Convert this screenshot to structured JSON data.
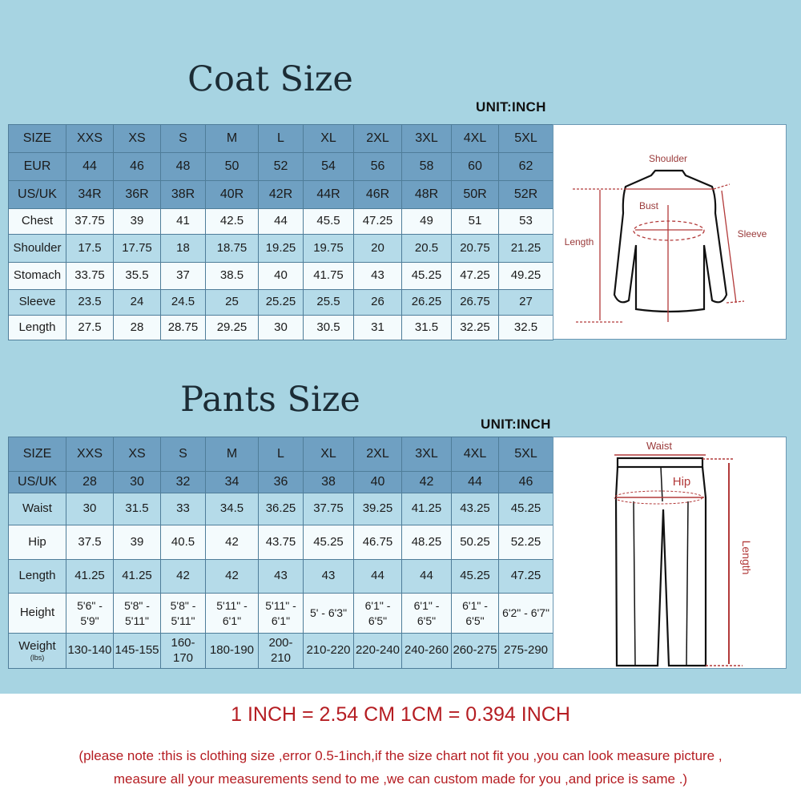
{
  "coat": {
    "title": "Coat Size",
    "unit": "UNIT:INCH",
    "header_rows": [
      [
        "SIZE",
        "XXS",
        "XS",
        "S",
        "M",
        "L",
        "XL",
        "2XL",
        "3XL",
        "4XL",
        "5XL"
      ],
      [
        "EUR",
        "44",
        "46",
        "48",
        "50",
        "52",
        "54",
        "56",
        "58",
        "60",
        "62"
      ],
      [
        "US/UK",
        "34R",
        "36R",
        "38R",
        "40R",
        "42R",
        "44R",
        "46R",
        "48R",
        "50R",
        "52R"
      ]
    ],
    "rows": [
      [
        "Chest",
        "37.75",
        "39",
        "41",
        "42.5",
        "44",
        "45.5",
        "47.25",
        "49",
        "51",
        "53"
      ],
      [
        "Shoulder",
        "17.5",
        "17.75",
        "18",
        "18.75",
        "19.25",
        "19.75",
        "20",
        "20.5",
        "20.75",
        "21.25"
      ],
      [
        "Stomach",
        "33.75",
        "35.5",
        "37",
        "38.5",
        "40",
        "41.75",
        "43",
        "45.25",
        "47.25",
        "49.25"
      ],
      [
        "Sleeve",
        "23.5",
        "24",
        "24.5",
        "25",
        "25.25",
        "25.5",
        "26",
        "26.25",
        "26.75",
        "27"
      ],
      [
        "Length",
        "27.5",
        "28",
        "28.75",
        "29.25",
        "30",
        "30.5",
        "31",
        "31.5",
        "32.25",
        "32.5"
      ]
    ],
    "diagram": {
      "shoulder": "Shoulder",
      "bust": "Bust",
      "length": "Length",
      "sleeve": "Sleeve"
    }
  },
  "pants": {
    "title": "Pants Size",
    "unit": "UNIT:INCH",
    "header_rows": [
      [
        "SIZE",
        "XXS",
        "XS",
        "S",
        "M",
        "L",
        "XL",
        "2XL",
        "3XL",
        "4XL",
        "5XL"
      ],
      [
        "US/UK",
        "28",
        "30",
        "32",
        "34",
        "36",
        "38",
        "40",
        "42",
        "44",
        "46"
      ]
    ],
    "rows": [
      [
        "Waist",
        "30",
        "31.5",
        "33",
        "34.5",
        "36.25",
        "37.75",
        "39.25",
        "41.25",
        "43.25",
        "45.25"
      ],
      [
        "Hip",
        "37.5",
        "39",
        "40.5",
        "42",
        "43.75",
        "45.25",
        "46.75",
        "48.25",
        "50.25",
        "52.25"
      ],
      [
        "Length",
        "41.25",
        "41.25",
        "42",
        "42",
        "43",
        "43",
        "44",
        "44",
        "45.25",
        "47.25"
      ],
      [
        "Height",
        "5'6\" - 5'9\"",
        "5'8\" - 5'11\"",
        "5'8\" - 5'11\"",
        "5'11\" - 6'1\"",
        "5'11\" - 6'1\"",
        "5' - 6'3\"",
        "6'1\" - 6'5\"",
        "6'1\" - 6'5\"",
        "6'1\" - 6'5\"",
        "6'2\" - 6'7\""
      ],
      [
        "Weight",
        "130-140",
        "145-155",
        "160-170",
        "180-190",
        "200-210",
        "210-220",
        "220-240",
        "240-260",
        "260-275",
        "275-290"
      ]
    ],
    "weight_unit": "(lbs)",
    "diagram": {
      "waist": "Waist",
      "hip": "Hip",
      "length": "Length"
    }
  },
  "conversion": "1 INCH = 2.54 CM   1CM = 0.394 INCH",
  "note_line1": "(please note :this is clothing size ,error 0.5-1inch,if the size chart not fit you ,you can look measure picture ,",
  "note_line2": "measure all your measurements send to me ,we can custom made for you ,and price is same .)",
  "colors": {
    "background": "#a7d4e2",
    "header": "#6fa0c2",
    "row_light": "#b5dbe9",
    "row_white": "#f4fbfd",
    "accent_red": "#b51d22"
  }
}
